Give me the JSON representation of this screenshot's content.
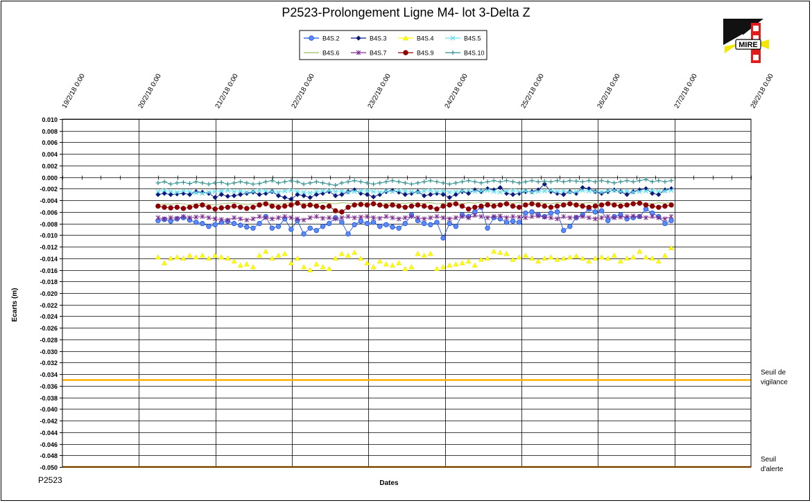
{
  "chart_data": {
    "type": "line",
    "title": "P2523-Prolongement  Ligne  M4- lot 3-Delta Z",
    "xlabel": "Dates",
    "ylabel": "Ecarts (m)",
    "footer": "P2523",
    "logo_text": "MIRE",
    "grid": true,
    "legend_position": "top",
    "xlim": [
      "2018-02-19 00:00",
      "2018-02-28 00:00"
    ],
    "ylim": [
      -0.05,
      0.01
    ],
    "x_ticks": [
      "19/2/18 0:00",
      "20/2/18 0:00",
      "21/2/18 0:00",
      "22/2/18 0:00",
      "23/2/18 0:00",
      "24/2/18 0:00",
      "25/2/18 0:00",
      "26/2/18 0:00",
      "27/2/18 0:00",
      "28/2/18 0:00"
    ],
    "y_ticks": [
      "0.010",
      "0.008",
      "0.006",
      "0.004",
      "0.002",
      "0.000",
      "-0.002",
      "-0.004",
      "-0.006",
      "-0.008",
      "-0.010",
      "-0.012",
      "-0.014",
      "-0.016",
      "-0.018",
      "-0.020",
      "-0.022",
      "-0.024",
      "-0.026",
      "-0.028",
      "-0.030",
      "-0.032",
      "-0.034",
      "-0.036",
      "-0.038",
      "-0.040",
      "-0.042",
      "-0.044",
      "-0.046",
      "-0.048",
      "-0.050"
    ],
    "x_start": "2018-02-20 06:00",
    "x_end": "2018-02-26 23:00",
    "thresholds": [
      {
        "label_line1": "Seuil de",
        "label_line2": "vigilance",
        "value": -0.035,
        "color": "#FFB000"
      },
      {
        "label_line1": "Seuil",
        "label_line2": "d'alerte",
        "value": -0.05,
        "color": "#E07B00"
      }
    ],
    "series": [
      {
        "name": "B4S.2",
        "color": "#1F4FE0",
        "fill": "#5B8CF5",
        "marker": "circle",
        "line": true,
        "values": [
          -0.0075,
          -0.0073,
          -0.0076,
          -0.0072,
          -0.007,
          -0.0074,
          -0.0078,
          -0.008,
          -0.0085,
          -0.0082,
          -0.0078,
          -0.0076,
          -0.008,
          -0.0083,
          -0.0086,
          -0.0088,
          -0.008,
          -0.0068,
          -0.0088,
          -0.0085,
          -0.0072,
          -0.009,
          -0.0075,
          -0.0098,
          -0.0088,
          -0.0092,
          -0.0085,
          -0.008,
          -0.007,
          -0.0078,
          -0.0098,
          -0.0082,
          -0.0076,
          -0.008,
          -0.0078,
          -0.0085,
          -0.0082,
          -0.0086,
          -0.0088,
          -0.008,
          -0.0065,
          -0.0075,
          -0.008,
          -0.0082,
          -0.0078,
          -0.0105,
          -0.008,
          -0.0085,
          -0.0065,
          -0.0068,
          -0.006,
          -0.0052,
          -0.0088,
          -0.007,
          -0.0072,
          -0.0078,
          -0.0076,
          -0.0078,
          -0.0062,
          -0.006,
          -0.0065,
          -0.0068,
          -0.0062,
          -0.006,
          -0.0092,
          -0.0085,
          -0.007,
          -0.0065,
          -0.0055,
          -0.006,
          -0.0058,
          -0.0075,
          -0.0068,
          -0.0065,
          -0.0072,
          -0.007,
          -0.0068,
          -0.0055,
          -0.0062,
          -0.0068,
          -0.008,
          -0.0075
        ]
      },
      {
        "name": "B4S.3",
        "color": "#0A1A7A",
        "fill": "#0A1A7A",
        "marker": "diamond",
        "line": true,
        "values": [
          -0.003,
          -0.0028,
          -0.003,
          -0.0029,
          -0.0028,
          -0.003,
          -0.0025,
          -0.0026,
          -0.0028,
          -0.0035,
          -0.003,
          -0.0033,
          -0.0032,
          -0.003,
          -0.0028,
          -0.0026,
          -0.003,
          -0.0028,
          -0.0025,
          -0.0032,
          -0.0035,
          -0.0038,
          -0.003,
          -0.0032,
          -0.0035,
          -0.003,
          -0.0028,
          -0.0025,
          -0.0032,
          -0.003,
          -0.0025,
          -0.0022,
          -0.0028,
          -0.003,
          -0.0034,
          -0.003,
          -0.0025,
          -0.0023,
          -0.0026,
          -0.003,
          -0.0028,
          -0.0025,
          -0.0032,
          -0.003,
          -0.0028,
          -0.003,
          -0.0035,
          -0.003,
          -0.0025,
          -0.0028,
          -0.0022,
          -0.0025,
          -0.002,
          -0.0022,
          -0.0018,
          -0.0028,
          -0.003,
          -0.0028,
          -0.0025,
          -0.0025,
          -0.0022,
          -0.0012,
          -0.0025,
          -0.0028,
          -0.003,
          -0.0025,
          -0.0028,
          -0.0018,
          -0.002,
          -0.0025,
          -0.0028,
          -0.0025,
          -0.0022,
          -0.0025,
          -0.003,
          -0.0025,
          -0.0022,
          -0.002,
          -0.0028,
          -0.003,
          -0.0022,
          -0.002
        ]
      },
      {
        "name": "B4S.4",
        "color": "#FFFF00",
        "fill": "#FFFF00",
        "marker": "triangle",
        "line": false,
        "values": [
          -0.0138,
          -0.0148,
          -0.014,
          -0.0138,
          -0.014,
          -0.0135,
          -0.0138,
          -0.0135,
          -0.014,
          -0.0135,
          -0.0138,
          -0.014,
          -0.0145,
          -0.0152,
          -0.015,
          -0.0155,
          -0.0135,
          -0.0128,
          -0.014,
          -0.0135,
          -0.0132,
          -0.0148,
          -0.014,
          -0.0155,
          -0.016,
          -0.015,
          -0.0155,
          -0.0158,
          -0.014,
          -0.0132,
          -0.0135,
          -0.013,
          -0.014,
          -0.0148,
          -0.0155,
          -0.0145,
          -0.015,
          -0.0152,
          -0.0148,
          -0.0158,
          -0.0155,
          -0.0132,
          -0.0135,
          -0.0132,
          -0.0158,
          -0.0155,
          -0.0152,
          -0.015,
          -0.0148,
          -0.0145,
          -0.0152,
          -0.0142,
          -0.014,
          -0.0128,
          -0.013,
          -0.0132,
          -0.0142,
          -0.0138,
          -0.0135,
          -0.014,
          -0.0145,
          -0.014,
          -0.0138,
          -0.0142,
          -0.014,
          -0.0138,
          -0.0136,
          -0.014,
          -0.0145,
          -0.014,
          -0.0138,
          -0.014,
          -0.0135,
          -0.0145,
          -0.014,
          -0.0138,
          -0.0128,
          -0.0138,
          -0.014,
          -0.0145,
          -0.0135,
          -0.0122
        ]
      },
      {
        "name": "B4S.5",
        "color": "#66E0F0",
        "fill": "#66E0F0",
        "marker": "x",
        "line": true,
        "values": [
          -0.0025,
          -0.0023,
          -0.0025,
          -0.0026,
          -0.0024,
          -0.0025,
          -0.0027,
          -0.0028,
          -0.0026,
          -0.0025,
          -0.0024,
          -0.0023,
          -0.0025,
          -0.0024,
          -0.0026,
          -0.0025,
          -0.0023,
          -0.0024,
          -0.0025,
          -0.0026,
          -0.0024,
          -0.0023,
          -0.0025,
          -0.0026,
          -0.0027,
          -0.0025,
          -0.0024,
          -0.0023,
          -0.0025,
          -0.0024,
          -0.0026,
          -0.0025,
          -0.0024,
          -0.0023,
          -0.0025,
          -0.0026,
          -0.0024,
          -0.0025,
          -0.0023,
          -0.0024,
          -0.0025,
          -0.0026,
          -0.0024,
          -0.0023,
          -0.0025,
          -0.0024,
          -0.0026,
          -0.0025,
          -0.0024,
          -0.0023,
          -0.0025,
          -0.0024,
          -0.0023,
          -0.0025,
          -0.0026,
          -0.0024,
          -0.0023,
          -0.0025,
          -0.0024,
          -0.0026,
          -0.0025,
          -0.0024,
          -0.0023,
          -0.0025,
          -0.0024,
          -0.0026,
          -0.0025,
          -0.0023,
          -0.0024,
          -0.0025,
          -0.0026,
          -0.0024,
          -0.0023,
          -0.0025,
          -0.0024,
          -0.0026,
          -0.0025,
          -0.0024,
          -0.0023,
          -0.0025,
          -0.0024,
          -0.0023
        ]
      },
      {
        "name": "B4S.6",
        "color": "#9BBB59",
        "fill": "#9BBB59",
        "marker": "none",
        "line": true,
        "values": [
          -0.0048,
          -0.0046,
          -0.0047,
          -0.0045,
          -0.0046,
          -0.0048,
          -0.0046,
          -0.0045,
          -0.0047,
          -0.0048,
          -0.0046,
          -0.0045,
          -0.0044,
          -0.0046,
          -0.0047,
          -0.0046,
          -0.0045,
          -0.0044,
          -0.0046,
          -0.0047,
          -0.0045,
          -0.0044,
          -0.0046,
          -0.0045,
          -0.0047,
          -0.0046,
          -0.0044,
          -0.0045,
          -0.0046,
          -0.0044,
          -0.0045,
          -0.0046,
          -0.0044,
          -0.0045,
          -0.0046,
          -0.0047,
          -0.0045,
          -0.0044,
          -0.0046,
          -0.0045,
          -0.0044,
          -0.0046,
          -0.0045,
          -0.0044,
          -0.0046,
          -0.0045,
          -0.0044,
          -0.0045,
          -0.0046,
          -0.0044,
          -0.0045,
          -0.0043,
          -0.0044,
          -0.0045,
          -0.0046,
          -0.0044,
          -0.0045,
          -0.0044,
          -0.0046,
          -0.0045,
          -0.0044,
          -0.0045,
          -0.0046,
          -0.0044,
          -0.0045,
          -0.0044,
          -0.0046,
          -0.0045,
          -0.0044,
          -0.0045,
          -0.0046,
          -0.0044,
          -0.0045,
          -0.0044,
          -0.0046,
          -0.0045,
          -0.0044,
          -0.0045,
          -0.0046,
          -0.0044,
          -0.0045,
          -0.0044
        ]
      },
      {
        "name": "B4S.7",
        "color": "#7A2A8A",
        "fill": "#7A2A8A",
        "marker": "star",
        "line": true,
        "values": [
          -0.007,
          -0.0072,
          -0.007,
          -0.0071,
          -0.0068,
          -0.007,
          -0.0069,
          -0.0068,
          -0.007,
          -0.0072,
          -0.0073,
          -0.0074,
          -0.007,
          -0.0072,
          -0.0074,
          -0.0072,
          -0.0068,
          -0.007,
          -0.0072,
          -0.007,
          -0.0068,
          -0.007,
          -0.0072,
          -0.0074,
          -0.007,
          -0.0068,
          -0.0071,
          -0.007,
          -0.0072,
          -0.007,
          -0.0068,
          -0.007,
          -0.0069,
          -0.0068,
          -0.007,
          -0.0071,
          -0.0068,
          -0.007,
          -0.0072,
          -0.007,
          -0.0068,
          -0.007,
          -0.0072,
          -0.007,
          -0.0068,
          -0.007,
          -0.0072,
          -0.007,
          -0.0068,
          -0.007,
          -0.0066,
          -0.0068,
          -0.007,
          -0.0068,
          -0.0067,
          -0.007,
          -0.0068,
          -0.0069,
          -0.007,
          -0.0068,
          -0.0067,
          -0.0069,
          -0.007,
          -0.0072,
          -0.0068,
          -0.007,
          -0.0069,
          -0.0068,
          -0.007,
          -0.0072,
          -0.007,
          -0.0068,
          -0.007,
          -0.0069,
          -0.0068,
          -0.0067,
          -0.0068,
          -0.007,
          -0.0068,
          -0.007,
          -0.0072,
          -0.0068
        ]
      },
      {
        "name": "B4S.9",
        "color": "#8B0000",
        "fill": "#8B0000",
        "marker": "circle",
        "line": true,
        "values": [
          -0.005,
          -0.0052,
          -0.0053,
          -0.0052,
          -0.0054,
          -0.0052,
          -0.005,
          -0.0048,
          -0.0052,
          -0.0055,
          -0.0053,
          -0.0052,
          -0.005,
          -0.0052,
          -0.0054,
          -0.0052,
          -0.0048,
          -0.0046,
          -0.005,
          -0.0052,
          -0.005,
          -0.0048,
          -0.0045,
          -0.005,
          -0.0048,
          -0.005,
          -0.0052,
          -0.005,
          -0.0058,
          -0.006,
          -0.0052,
          -0.0048,
          -0.0047,
          -0.0048,
          -0.0046,
          -0.0048,
          -0.005,
          -0.0048,
          -0.005,
          -0.0052,
          -0.005,
          -0.0048,
          -0.005,
          -0.0052,
          -0.0055,
          -0.005,
          -0.0048,
          -0.0046,
          -0.005,
          -0.0055,
          -0.0052,
          -0.005,
          -0.0048,
          -0.005,
          -0.0048,
          -0.0046,
          -0.005,
          -0.0052,
          -0.0048,
          -0.0046,
          -0.0048,
          -0.005,
          -0.0052,
          -0.005,
          -0.0048,
          -0.0046,
          -0.0048,
          -0.005,
          -0.0052,
          -0.005,
          -0.0048,
          -0.0046,
          -0.0048,
          -0.005,
          -0.0048,
          -0.0046,
          -0.0045,
          -0.0048,
          -0.005,
          -0.0052,
          -0.005,
          -0.0048
        ]
      },
      {
        "name": "B4S.10",
        "color": "#2F8F8F",
        "fill": "#2F8F8F",
        "marker": "plus",
        "line": true,
        "values": [
          -0.001,
          -0.0008,
          -0.0012,
          -0.001,
          -0.0009,
          -0.0011,
          -0.0008,
          -0.001,
          -0.0012,
          -0.001,
          -0.0009,
          -0.0012,
          -0.001,
          -0.0008,
          -0.001,
          -0.0012,
          -0.0011,
          -0.0008,
          -0.0006,
          -0.001,
          -0.0008,
          -0.0006,
          -0.0008,
          -0.0012,
          -0.001,
          -0.0008,
          -0.001,
          -0.0012,
          -0.0014,
          -0.001,
          -0.0008,
          -0.0006,
          -0.0008,
          -0.001,
          -0.0012,
          -0.001,
          -0.0008,
          -0.0006,
          -0.0008,
          -0.001,
          -0.0012,
          -0.001,
          -0.0008,
          -0.0006,
          -0.0008,
          -0.001,
          -0.0012,
          -0.001,
          -0.0008,
          -0.0006,
          -0.0008,
          -0.001,
          -0.0008,
          -0.0006,
          -0.0008,
          -0.0006,
          -0.0008,
          -0.001,
          -0.0008,
          -0.0006,
          -0.0008,
          -0.0007,
          -0.0008,
          -0.0006,
          -0.0008,
          -0.0006,
          -0.0007,
          -0.0008,
          -0.0006,
          -0.0008,
          -0.0006,
          -0.0008,
          -0.001,
          -0.0008,
          -0.0006,
          -0.0008,
          -0.0006,
          -0.0004,
          -0.0008,
          -0.0006,
          -0.0008,
          -0.0006
        ]
      }
    ]
  }
}
